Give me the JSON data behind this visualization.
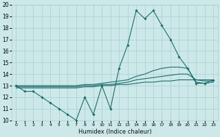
{
  "xlabel": "Humidex (Indice chaleur)",
  "bg_color": "#cce8e8",
  "grid_color": "#aacece",
  "line_color": "#1a6b6b",
  "xlim": [
    -0.5,
    23.5
  ],
  "ylim": [
    10,
    20
  ],
  "yticks": [
    10,
    11,
    12,
    13,
    14,
    15,
    16,
    17,
    18,
    19,
    20
  ],
  "xticks": [
    0,
    1,
    2,
    3,
    4,
    5,
    6,
    7,
    8,
    9,
    10,
    11,
    12,
    13,
    14,
    15,
    16,
    17,
    18,
    19,
    20,
    21,
    22,
    23
  ],
  "humidex": [
    13,
    12.5,
    12.5,
    12,
    11.5,
    11,
    10.5,
    10,
    12,
    10.5,
    13,
    11,
    14.5,
    16.5,
    19.5,
    18.8,
    19.5,
    18.2,
    17,
    15.5,
    14.5,
    13.2,
    13.2,
    13.5
  ],
  "line2": [
    13.0,
    13.0,
    13.0,
    13.0,
    13.0,
    13.0,
    13.0,
    13.0,
    13.1,
    13.1,
    13.2,
    13.3,
    13.4,
    13.5,
    13.8,
    14.0,
    14.3,
    14.5,
    14.6,
    14.6,
    14.5,
    13.3,
    13.2,
    13.3
  ],
  "line3": [
    12.9,
    12.9,
    12.9,
    12.9,
    12.9,
    12.9,
    12.9,
    12.9,
    13.0,
    13.0,
    13.1,
    13.1,
    13.2,
    13.3,
    13.5,
    13.6,
    13.7,
    13.8,
    13.9,
    14.0,
    14.0,
    13.5,
    13.4,
    13.4
  ],
  "line4": [
    12.8,
    12.8,
    12.8,
    12.8,
    12.8,
    12.8,
    12.8,
    12.8,
    12.9,
    12.9,
    13.0,
    13.0,
    13.1,
    13.1,
    13.2,
    13.3,
    13.3,
    13.4,
    13.4,
    13.5,
    13.5,
    13.5,
    13.5,
    13.5
  ]
}
